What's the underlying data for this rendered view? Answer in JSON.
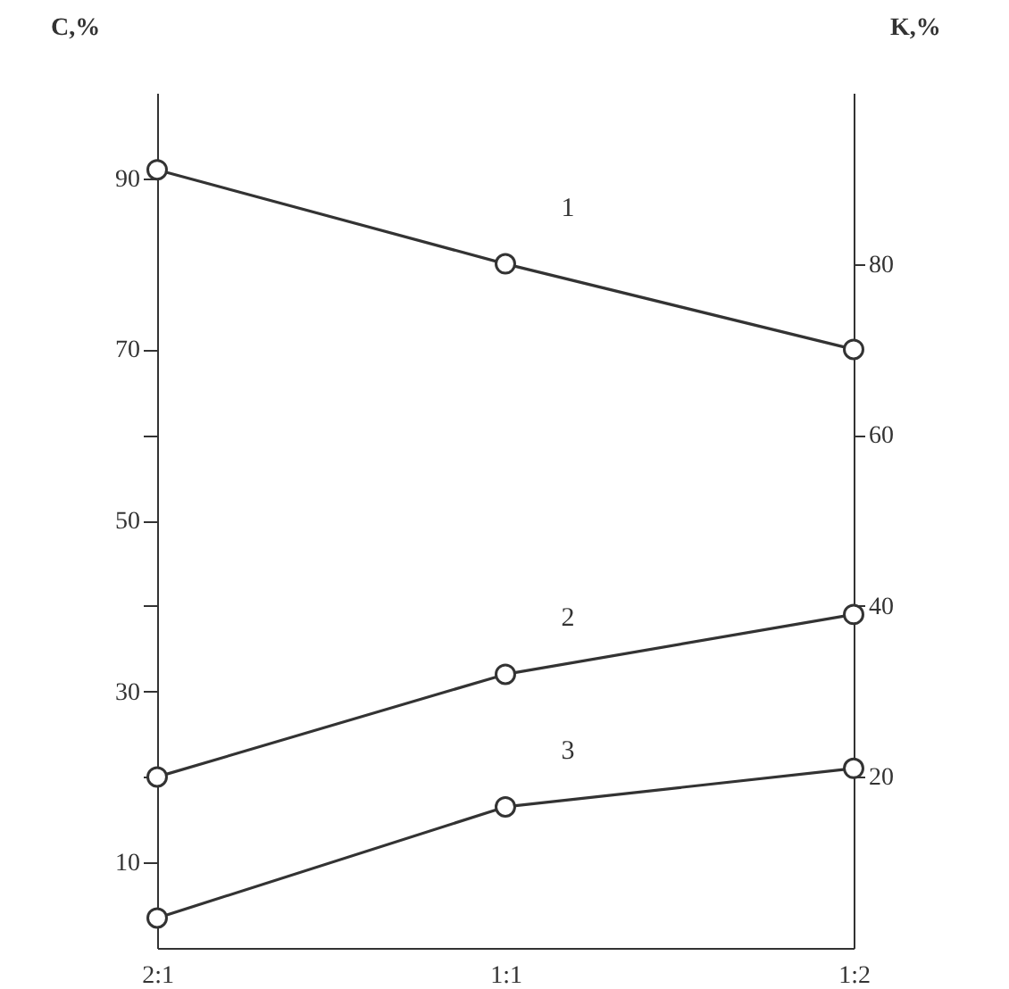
{
  "chart_data": {
    "type": "line",
    "ylabel": "C,%",
    "y2label": "K,%",
    "categories": [
      "2:1",
      "1:1",
      "1:2"
    ],
    "series": [
      {
        "name": "1",
        "color": "#333333",
        "values": [
          91,
          80,
          70
        ]
      },
      {
        "name": "2",
        "color": "#333333",
        "values": [
          20,
          32,
          39
        ]
      },
      {
        "name": "3",
        "color": "#333333",
        "values": [
          3.5,
          16.5,
          21
        ]
      }
    ],
    "ylim": [
      0,
      100
    ],
    "yticks": [
      10,
      {
        "value": 20,
        "label": null
      },
      30,
      {
        "value": 40,
        "label": null
      },
      50,
      {
        "value": 60,
        "label": null
      },
      70,
      90
    ],
    "y2lim": [
      0,
      100
    ],
    "y2ticks": [
      20,
      40,
      60,
      80
    ],
    "marker": "circle",
    "line_style": "solid"
  }
}
